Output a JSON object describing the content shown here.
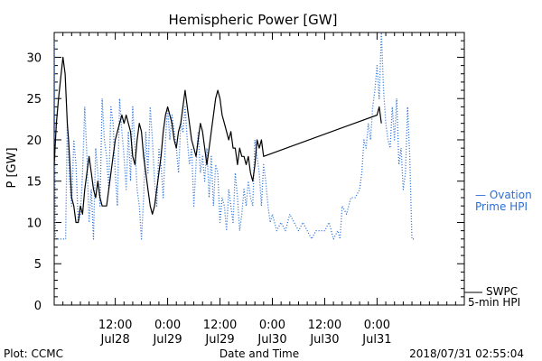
{
  "chart_data": {
    "type": "line",
    "title": "Hemispheric Power [GW]",
    "xlabel": "Date and Time",
    "ylabel": "P [GW]",
    "ylim": [
      0,
      33
    ],
    "yticks": [
      0,
      5,
      10,
      15,
      20,
      25,
      30
    ],
    "xlim_hours": [
      0,
      94
    ],
    "xticks": [
      {
        "t": 14,
        "line1": "12:00",
        "line2": "Jul28"
      },
      {
        "t": 26,
        "line1": "0:00",
        "line2": "Jul29"
      },
      {
        "t": 38,
        "line1": "12:00",
        "line2": "Jul29"
      },
      {
        "t": 50,
        "line1": "0:00",
        "line2": "Jul30"
      },
      {
        "t": 62,
        "line1": "12:00",
        "line2": "Jul30"
      },
      {
        "t": 74,
        "line1": "0:00",
        "line2": "Jul31"
      }
    ],
    "series": [
      {
        "name": "SWPC 5-min HPI",
        "color": "#000000",
        "style": "solid",
        "points": [
          [
            0,
            17
          ],
          [
            0.5,
            22
          ],
          [
            1,
            25
          ],
          [
            1.6,
            28
          ],
          [
            2,
            30
          ],
          [
            2.5,
            28
          ],
          [
            3,
            22
          ],
          [
            3.3,
            20
          ],
          [
            3.6,
            17
          ],
          [
            4,
            13
          ],
          [
            4.5,
            12
          ],
          [
            5,
            10
          ],
          [
            5.5,
            10
          ],
          [
            6,
            12
          ],
          [
            6.5,
            11
          ],
          [
            7,
            14
          ],
          [
            7.5,
            16
          ],
          [
            8,
            18
          ],
          [
            8.5,
            16
          ],
          [
            9,
            14
          ],
          [
            9.5,
            13
          ],
          [
            10,
            15
          ],
          [
            10.5,
            13
          ],
          [
            11,
            12
          ],
          [
            12,
            12
          ],
          [
            12.5,
            14
          ],
          [
            13,
            16
          ],
          [
            13.5,
            18
          ],
          [
            14,
            20
          ],
          [
            14.5,
            21
          ],
          [
            15,
            22
          ],
          [
            15.5,
            23
          ],
          [
            16,
            22
          ],
          [
            16.5,
            23
          ],
          [
            17,
            22
          ],
          [
            17.5,
            21
          ],
          [
            18,
            18
          ],
          [
            18.5,
            17
          ],
          [
            19,
            20
          ],
          [
            19.5,
            22
          ],
          [
            20,
            21
          ],
          [
            20.5,
            18
          ],
          [
            21,
            16
          ],
          [
            21.5,
            14
          ],
          [
            22,
            12
          ],
          [
            22.5,
            11
          ],
          [
            23,
            12
          ],
          [
            23.5,
            14
          ],
          [
            24,
            16
          ],
          [
            24.5,
            18
          ],
          [
            25,
            21
          ],
          [
            25.5,
            23
          ],
          [
            26,
            24
          ],
          [
            26.5,
            23
          ],
          [
            27,
            22
          ],
          [
            27.5,
            20
          ],
          [
            28,
            19
          ],
          [
            28.5,
            21
          ],
          [
            29,
            22
          ],
          [
            29.5,
            24
          ],
          [
            30,
            26
          ],
          [
            30.5,
            24
          ],
          [
            31,
            22
          ],
          [
            31.5,
            20
          ],
          [
            32,
            19
          ],
          [
            32.5,
            18
          ],
          [
            33,
            20
          ],
          [
            33.5,
            22
          ],
          [
            34,
            21
          ],
          [
            34.5,
            19
          ],
          [
            35,
            17
          ],
          [
            35.5,
            19
          ],
          [
            36,
            21
          ],
          [
            36.5,
            23
          ],
          [
            37,
            25
          ],
          [
            37.5,
            26
          ],
          [
            38,
            25
          ],
          [
            38.5,
            23
          ],
          [
            39,
            22
          ],
          [
            39.5,
            21
          ],
          [
            40,
            20
          ],
          [
            40.5,
            21
          ],
          [
            41,
            19
          ],
          [
            41.5,
            19
          ],
          [
            42,
            17
          ],
          [
            42.5,
            19
          ],
          [
            43,
            18
          ],
          [
            43.5,
            18
          ],
          [
            44,
            17
          ],
          [
            44.5,
            18
          ],
          [
            45,
            16
          ],
          [
            45.5,
            15
          ],
          [
            46,
            17
          ],
          [
            46.5,
            20
          ],
          [
            47,
            19
          ],
          [
            47.5,
            20
          ],
          [
            48,
            18
          ],
          [
            74,
            23
          ],
          [
            74.5,
            24
          ],
          [
            75,
            22
          ]
        ]
      },
      {
        "name": "Ovation Prime HPI",
        "color": "#2a6fd6",
        "style": "dotted",
        "points": [
          [
            0,
            32
          ],
          [
            0.3,
            8
          ],
          [
            1,
            8
          ],
          [
            2,
            8
          ],
          [
            2.6,
            8
          ],
          [
            3,
            22
          ],
          [
            3.5,
            15
          ],
          [
            4,
            12
          ],
          [
            4.5,
            20
          ],
          [
            5,
            17
          ],
          [
            5.5,
            10
          ],
          [
            6,
            11
          ],
          [
            6.5,
            16
          ],
          [
            7,
            24
          ],
          [
            7.5,
            18
          ],
          [
            8,
            10
          ],
          [
            8.5,
            14
          ],
          [
            9,
            8
          ],
          [
            9.5,
            19
          ],
          [
            10,
            16
          ],
          [
            10.5,
            12
          ],
          [
            11,
            25
          ],
          [
            11.5,
            20
          ],
          [
            12,
            18
          ],
          [
            12.5,
            14
          ],
          [
            13,
            24
          ],
          [
            13.5,
            22
          ],
          [
            14,
            16
          ],
          [
            14.5,
            12
          ],
          [
            15,
            25
          ],
          [
            15.5,
            21
          ],
          [
            16,
            18
          ],
          [
            16.5,
            14
          ],
          [
            17,
            21
          ],
          [
            17.5,
            15
          ],
          [
            18,
            24
          ],
          [
            18.5,
            19
          ],
          [
            19,
            14
          ],
          [
            19.5,
            12
          ],
          [
            20,
            8
          ],
          [
            20.5,
            13
          ],
          [
            21,
            21
          ],
          [
            21.5,
            16
          ],
          [
            22,
            24
          ],
          [
            22.5,
            20
          ],
          [
            23,
            15
          ],
          [
            23.5,
            12
          ],
          [
            24,
            19
          ],
          [
            24.5,
            17
          ],
          [
            25,
            13
          ],
          [
            25.5,
            20
          ],
          [
            26,
            24
          ],
          [
            26.5,
            20
          ],
          [
            27,
            23
          ],
          [
            27.5,
            21
          ],
          [
            28,
            19
          ],
          [
            28.5,
            16
          ],
          [
            29,
            22
          ],
          [
            29.5,
            21
          ],
          [
            30,
            24
          ],
          [
            30.5,
            20
          ],
          [
            31,
            17
          ],
          [
            31.5,
            19
          ],
          [
            32,
            12
          ],
          [
            32.5,
            17
          ],
          [
            33,
            21
          ],
          [
            33.5,
            16
          ],
          [
            34,
            18
          ],
          [
            34.5,
            15
          ],
          [
            35,
            19
          ],
          [
            35.5,
            13
          ],
          [
            36,
            18
          ],
          [
            36.5,
            12
          ],
          [
            37,
            17
          ],
          [
            37.5,
            16
          ],
          [
            38,
            10
          ],
          [
            38.5,
            13
          ],
          [
            39,
            12
          ],
          [
            39.5,
            9
          ],
          [
            40,
            14
          ],
          [
            40.5,
            12
          ],
          [
            41,
            10
          ],
          [
            41.5,
            16
          ],
          [
            42,
            13
          ],
          [
            42.5,
            9
          ],
          [
            43,
            11
          ],
          [
            43.5,
            14
          ],
          [
            44,
            12
          ],
          [
            44.5,
            15
          ],
          [
            45,
            13
          ],
          [
            45.5,
            12
          ],
          [
            46,
            20
          ],
          [
            46.5,
            18
          ],
          [
            47,
            16
          ],
          [
            47.5,
            12
          ],
          [
            48,
            17
          ],
          [
            48.5,
            15
          ],
          [
            49,
            12
          ],
          [
            49.5,
            10
          ],
          [
            50,
            11
          ],
          [
            51,
            9
          ],
          [
            52,
            10
          ],
          [
            53,
            9
          ],
          [
            54,
            11
          ],
          [
            55,
            10
          ],
          [
            56,
            9
          ],
          [
            57,
            10
          ],
          [
            58,
            9
          ],
          [
            59,
            8
          ],
          [
            60,
            9
          ],
          [
            61,
            9
          ],
          [
            62,
            9
          ],
          [
            63,
            10
          ],
          [
            64,
            8
          ],
          [
            65,
            9
          ],
          [
            65.5,
            8
          ],
          [
            66,
            12
          ],
          [
            67,
            11
          ],
          [
            68,
            13
          ],
          [
            69,
            13
          ],
          [
            70,
            14
          ],
          [
            70.5,
            16
          ],
          [
            71,
            20
          ],
          [
            71.5,
            19
          ],
          [
            72,
            22
          ],
          [
            72.5,
            20
          ],
          [
            73,
            24
          ],
          [
            73.5,
            26
          ],
          [
            74,
            29
          ],
          [
            74.5,
            25
          ],
          [
            75,
            33
          ],
          [
            75.5,
            26
          ],
          [
            76,
            22
          ],
          [
            76.5,
            20
          ],
          [
            77,
            19
          ],
          [
            77.5,
            24
          ],
          [
            78,
            20
          ],
          [
            78.5,
            25
          ],
          [
            79,
            17
          ],
          [
            79.5,
            19
          ],
          [
            80,
            14
          ],
          [
            80.5,
            16
          ],
          [
            81,
            24
          ],
          [
            81.5,
            18
          ],
          [
            82,
            8
          ],
          [
            82.5,
            8
          ]
        ]
      }
    ],
    "legend": {
      "placement": "right",
      "items": [
        {
          "line1": "— Ovation",
          "line2": "Prime HPI",
          "color": "#2a6fd6"
        },
        {
          "line1": "SWPC",
          "line2": "5-min HPI",
          "color": "#000000"
        }
      ]
    }
  },
  "footer": {
    "left": "Plot: CCMC",
    "center": "Date and Time",
    "right": "2018/07/31 02:55:04"
  }
}
